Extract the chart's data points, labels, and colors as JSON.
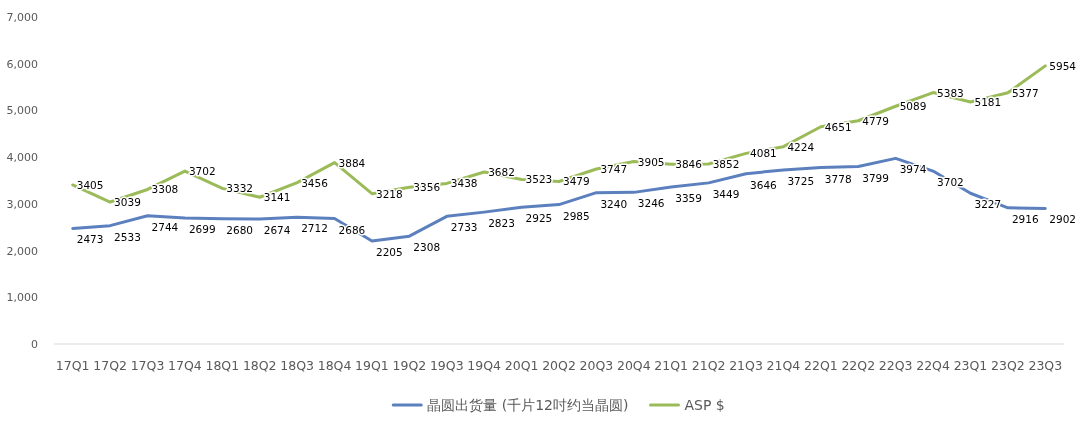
{
  "chart_data": {
    "type": "line",
    "categories": [
      "17Q1",
      "17Q2",
      "17Q3",
      "17Q4",
      "18Q1",
      "18Q2",
      "18Q3",
      "18Q4",
      "19Q1",
      "19Q2",
      "19Q3",
      "19Q4",
      "20Q1",
      "20Q2",
      "20Q3",
      "20Q4",
      "21Q1",
      "21Q2",
      "21Q3",
      "21Q4",
      "22Q1",
      "22Q2",
      "22Q3",
      "22Q4",
      "23Q1",
      "23Q2",
      "23Q3"
    ],
    "series": [
      {
        "name": "晶圆出货量 (千片12吋约当晶圆)",
        "color": "#5b80bd",
        "values": [
          2473,
          2533,
          2744,
          2699,
          2680,
          2674,
          2712,
          2686,
          2205,
          2308,
          2733,
          2823,
          2925,
          2985,
          3240,
          3246,
          3359,
          3449,
          3646,
          3725,
          3778,
          3799,
          3974,
          3702,
          3227,
          2916,
          2902
        ]
      },
      {
        "name": "ASP $",
        "color": "#9bbb59",
        "values": [
          3405,
          3039,
          3308,
          3702,
          3332,
          3141,
          3456,
          3884,
          3218,
          3356,
          3438,
          3682,
          3523,
          3479,
          3747,
          3905,
          3846,
          3852,
          4081,
          4224,
          4651,
          4779,
          5089,
          5383,
          5181,
          5377,
          5954
        ]
      }
    ],
    "ylim": [
      0,
      7000
    ],
    "yticks": [
      0,
      {
        "value": 1000,
        "label": "1,000"
      },
      {
        "value": 2000,
        "label": "2,000"
      },
      {
        "value": 3000,
        "label": "3,000"
      },
      {
        "value": 4000,
        "label": "4,000"
      },
      {
        "value": 5000,
        "label": "5,000"
      },
      {
        "value": 6000,
        "label": "6,000"
      },
      {
        "value": 7000,
        "label": "7,000"
      }
    ],
    "data_labels": true,
    "legend": "bottom",
    "grid": false,
    "marker": "none",
    "line_style": "solid"
  }
}
